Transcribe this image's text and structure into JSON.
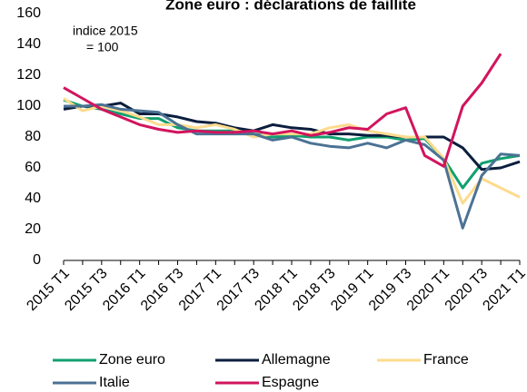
{
  "chart_data": {
    "type": "line",
    "title": "Zone euro : déclarations de faillite",
    "annotation": [
      "indice 2015",
      "= 100"
    ],
    "categories": [
      "2015 T1",
      null,
      "2015 T3",
      null,
      "2016 T1",
      null,
      "2016 T3",
      null,
      "2017 T1",
      null,
      "2017 T3",
      null,
      "2018 T1",
      null,
      "2018 T3",
      null,
      "2019 T1",
      null,
      "2019 T3",
      null,
      "2020 T1",
      null,
      "2020 T3",
      null,
      "2021 T1"
    ],
    "series": [
      {
        "name": "Zone euro",
        "color": "#11a06f",
        "values": [
          104,
          100,
          98,
          95,
          92,
          92,
          86,
          84,
          84,
          84,
          82,
          80,
          81,
          80,
          80,
          78,
          80,
          80,
          78,
          79,
          66,
          47,
          63,
          66,
          68
        ]
      },
      {
        "name": "Allemagne",
        "color": "#0b1e3d",
        "values": [
          98,
          100,
          100,
          102,
          95,
          95,
          93,
          90,
          89,
          86,
          84,
          88,
          86,
          85,
          82,
          82,
          81,
          81,
          80,
          80,
          80,
          73,
          59,
          60,
          64
        ]
      },
      {
        "name": "France",
        "color": "#fddb8e",
        "values": [
          105,
          97,
          100,
          97,
          93,
          88,
          88,
          86,
          88,
          85,
          80,
          82,
          82,
          82,
          86,
          88,
          84,
          82,
          80,
          80,
          66,
          37,
          53,
          47,
          41
        ]
      },
      {
        "name": "Italie",
        "color": "#4b7294",
        "values": [
          100,
          100,
          101,
          98,
          97,
          96,
          88,
          82,
          82,
          82,
          82,
          78,
          80,
          76,
          74,
          73,
          76,
          73,
          78,
          75,
          65,
          21,
          55,
          69,
          68
        ]
      },
      {
        "name": "Espagne",
        "color": "#d2145e",
        "values": [
          112,
          105,
          98,
          93,
          88,
          85,
          83,
          84,
          83,
          83,
          84,
          82,
          84,
          81,
          83,
          86,
          85,
          95,
          99,
          68,
          61,
          100,
          115,
          134,
          null
        ]
      }
    ],
    "ylim": [
      0,
      160
    ],
    "yticks": [
      0,
      20,
      40,
      60,
      80,
      100,
      120,
      140,
      160
    ]
  }
}
